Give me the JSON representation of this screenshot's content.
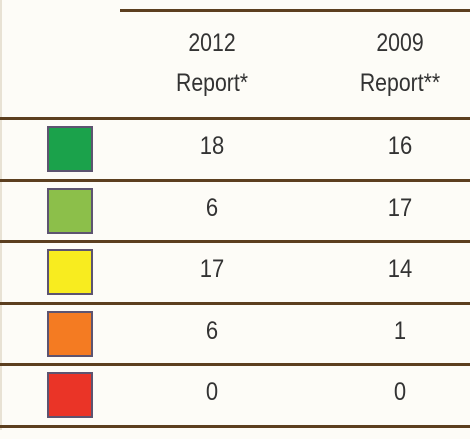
{
  "table": {
    "header": [
      [
        "2012",
        "Report*"
      ],
      [
        "2009",
        "Report**"
      ]
    ],
    "rows": [
      {
        "color": "#1ba24b",
        "values": [
          "18",
          "16"
        ]
      },
      {
        "color": "#8cbf4a",
        "values": [
          "6",
          "17"
        ]
      },
      {
        "color": "#f8ec1f",
        "values": [
          "17",
          "14"
        ]
      },
      {
        "color": "#f47b22",
        "values": [
          "6",
          "1"
        ]
      },
      {
        "color": "#ea3427",
        "values": [
          "0",
          "0"
        ]
      }
    ]
  }
}
